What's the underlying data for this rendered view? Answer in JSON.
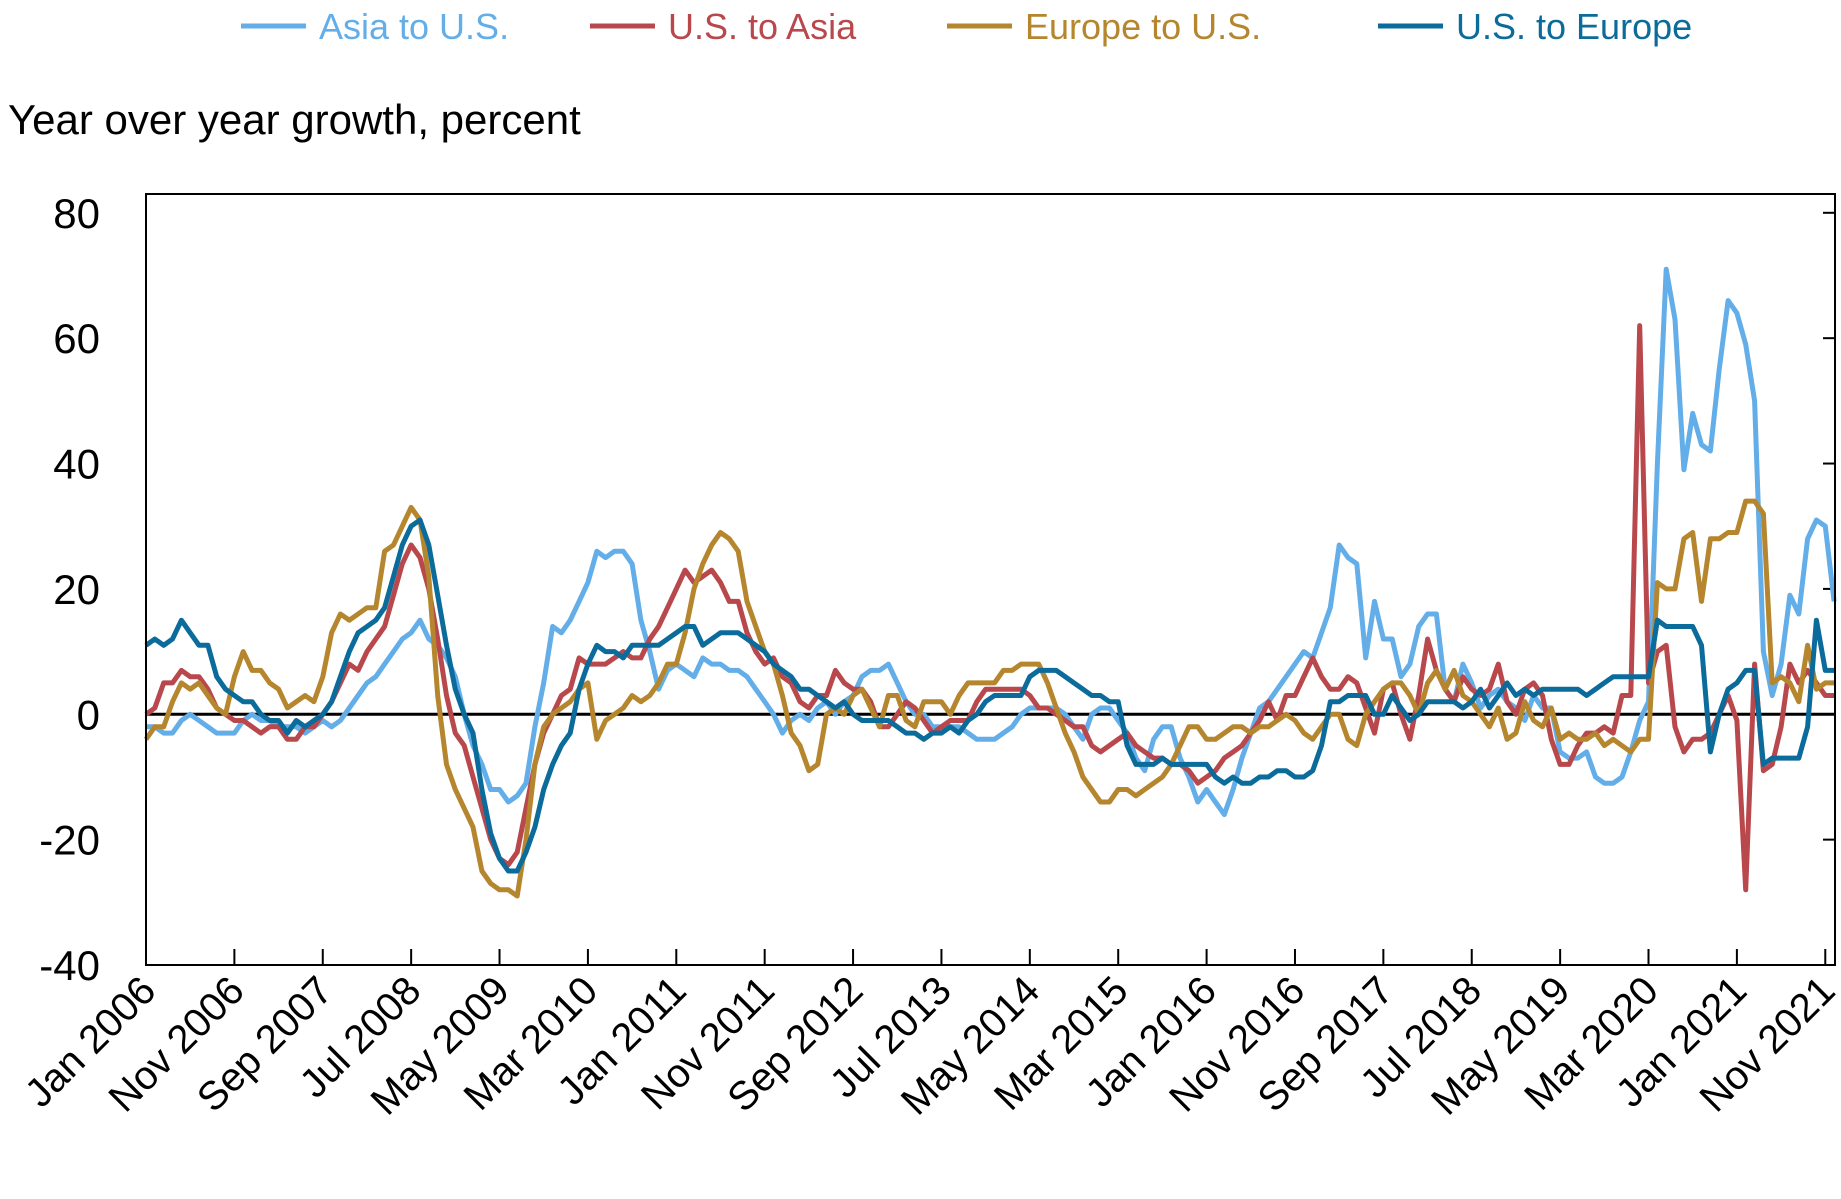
{
  "chart_data": {
    "type": "line",
    "title": "",
    "ylabel": "Year over year growth, percent",
    "xlabel": "",
    "ylim": [
      -40,
      83
    ],
    "xlim": [
      "2006-01",
      "2021-12"
    ],
    "yticks": [
      80,
      60,
      40,
      20,
      0,
      -20,
      -40
    ],
    "xtick_labels": [
      "Jan 2006",
      "Nov 2006",
      "Sep 2007",
      "Jul 2008",
      "May 2009",
      "Mar 2010",
      "Jan 2011",
      "Nov 2011",
      "Sep 2012",
      "Jul 2013",
      "May 2014",
      "Mar 2015",
      "Jan 2016",
      "Nov 2016",
      "Sep 2017",
      "Jul 2018",
      "May 2019",
      "Mar 2020",
      "Jan 2021",
      "Nov 2021"
    ],
    "grid": false,
    "zero_line": true,
    "legend_position": "top",
    "frequency": "monthly",
    "series": [
      {
        "name": "Asia to U.S.",
        "color": "#63aee8",
        "values": {
          "2006": [
            -2,
            -2,
            -3,
            -3,
            -1,
            0,
            -1,
            -2,
            -3,
            -3,
            -3,
            -1
          ],
          "2007": [
            0,
            -1,
            -1,
            -2,
            -2,
            -2,
            -3,
            -2,
            -1,
            -2,
            -1,
            1
          ],
          "2008": [
            3,
            5,
            6,
            8,
            10,
            12,
            13,
            15,
            12,
            11,
            9,
            6
          ],
          "2009": [
            0,
            -5,
            -8,
            -12,
            -12,
            -14,
            -13,
            -11,
            -2,
            5,
            14,
            13
          ],
          "2010": [
            15,
            18,
            21,
            26,
            25,
            26,
            26,
            24,
            15,
            10,
            4,
            7
          ],
          "2011": [
            8,
            7,
            6,
            9,
            8,
            8,
            7,
            7,
            6,
            4,
            2,
            0
          ],
          "2012": [
            -3,
            -1,
            0,
            -1,
            1,
            2,
            0,
            2,
            3,
            6,
            7,
            7
          ],
          "2013": [
            8,
            5,
            2,
            0,
            0,
            -2,
            -2,
            -2,
            -2,
            -3,
            -4,
            -4
          ],
          "2014": [
            -4,
            -3,
            -2,
            0,
            1,
            1,
            1,
            1,
            0,
            -2,
            -4,
            0
          ],
          "2015": [
            1,
            1,
            -1,
            -3,
            -7,
            -9,
            -4,
            -2,
            -2,
            -7,
            -10,
            -14
          ],
          "2016": [
            -12,
            -14,
            -16,
            -12,
            -7,
            -3,
            1,
            2,
            4,
            6,
            8,
            10
          ],
          "2017": [
            9,
            13,
            17,
            27,
            25,
            24,
            9,
            18,
            12,
            12,
            6,
            8
          ],
          "2018": [
            14,
            16,
            16,
            4,
            2,
            8,
            5,
            1,
            3,
            4,
            2,
            1
          ],
          "2019": [
            -1,
            3,
            1,
            1,
            -6,
            -7,
            -7,
            -6,
            -10,
            -11,
            -11,
            -10
          ],
          "2020": [
            -6,
            -1,
            2,
            40,
            71,
            63,
            39,
            48,
            43,
            42,
            55,
            66
          ],
          "2021": [
            64,
            59,
            50,
            10,
            3,
            8,
            19,
            16,
            28,
            31,
            30,
            18
          ]
        }
      },
      {
        "name": "U.S. to Asia",
        "color": "#b8484c",
        "values": {
          "2006": [
            0,
            1,
            5,
            5,
            7,
            6,
            6,
            4,
            1,
            0,
            -1,
            -1
          ],
          "2007": [
            -2,
            -3,
            -2,
            -2,
            -4,
            -4,
            -2,
            -2,
            0,
            2,
            5,
            8
          ],
          "2008": [
            7,
            10,
            12,
            14,
            19,
            24,
            27,
            25,
            20,
            12,
            3,
            -3
          ],
          "2009": [
            -5,
            -10,
            -15,
            -20,
            -23,
            -24,
            -22,
            -15,
            -8,
            -3,
            0,
            3
          ],
          "2010": [
            4,
            9,
            8,
            8,
            8,
            9,
            10,
            9,
            9,
            12,
            14,
            17
          ],
          "2011": [
            20,
            23,
            21,
            22,
            23,
            21,
            18,
            18,
            13,
            10,
            8,
            9
          ],
          "2012": [
            6,
            5,
            2,
            1,
            3,
            3,
            7,
            5,
            4,
            4,
            2,
            -2
          ],
          "2013": [
            -2,
            0,
            2,
            1,
            -1,
            -3,
            -2,
            -1,
            -1,
            -1,
            2,
            4
          ],
          "2014": [
            4,
            4,
            4,
            4,
            3,
            1,
            1,
            0,
            -1,
            -2,
            -2,
            -5
          ],
          "2015": [
            -6,
            -5,
            -4,
            -3,
            -5,
            -6,
            -7,
            -7,
            -8,
            -8,
            -9,
            -11
          ],
          "2016": [
            -10,
            -9,
            -7,
            -6,
            -5,
            -3,
            -1,
            2,
            -1,
            3,
            3,
            6
          ],
          "2017": [
            9,
            6,
            4,
            4,
            6,
            5,
            1,
            -3,
            4,
            5,
            0,
            -4
          ],
          "2018": [
            3,
            12,
            7,
            4,
            2,
            6,
            4,
            3,
            4,
            8,
            2,
            0
          ],
          "2019": [
            4,
            5,
            3,
            -4,
            -8,
            -8,
            -5,
            -3,
            -3,
            -2,
            -3,
            3
          ],
          "2020": [
            3,
            62,
            5,
            10,
            11,
            -2,
            -6,
            -4,
            -4,
            -3,
            0,
            3
          ],
          "2021": [
            -1,
            -28,
            8,
            -9,
            -8,
            -2,
            8,
            5,
            7,
            5,
            3,
            3
          ]
        }
      },
      {
        "name": "Europe to U.S.",
        "color": "#b5862e",
        "values": {
          "2006": [
            -4,
            -2,
            -2,
            2,
            5,
            4,
            5,
            3,
            1,
            0,
            6,
            10
          ],
          "2007": [
            7,
            7,
            5,
            4,
            1,
            2,
            3,
            2,
            6,
            13,
            16,
            15
          ],
          "2008": [
            16,
            17,
            17,
            26,
            27,
            30,
            33,
            31,
            22,
            3,
            -8,
            -12
          ],
          "2009": [
            -15,
            -18,
            -25,
            -27,
            -28,
            -28,
            -29,
            -20,
            -8,
            -2,
            0,
            1
          ],
          "2010": [
            2,
            4,
            5,
            -4,
            -1,
            0,
            1,
            3,
            2,
            3,
            5,
            8
          ],
          "2011": [
            8,
            13,
            20,
            24,
            27,
            29,
            28,
            26,
            18,
            14,
            10,
            8
          ],
          "2012": [
            3,
            -3,
            -5,
            -9,
            -8,
            0,
            1,
            0,
            3,
            4,
            1,
            -2
          ],
          "2013": [
            3,
            3,
            -1,
            -2,
            2,
            2,
            2,
            0,
            3,
            5,
            5,
            5
          ],
          "2014": [
            5,
            7,
            7,
            8,
            8,
            8,
            5,
            1,
            -3,
            -6,
            -10,
            -12
          ],
          "2015": [
            -14,
            -14,
            -12,
            -12,
            -13,
            -12,
            -11,
            -10,
            -8,
            -5,
            -2,
            -2
          ],
          "2016": [
            -4,
            -4,
            -3,
            -2,
            -2,
            -3,
            -2,
            -2,
            -1,
            0,
            -1,
            -3
          ],
          "2017": [
            -4,
            -2,
            0,
            0,
            -4,
            -5,
            0,
            2,
            4,
            5,
            5,
            3
          ],
          "2018": [
            0,
            5,
            7,
            4,
            7,
            3,
            2,
            0,
            -2,
            1,
            -4,
            -3
          ],
          "2019": [
            2,
            -1,
            -2,
            1,
            -4,
            -3,
            -4,
            -4,
            -3,
            -5,
            -4,
            -5
          ],
          "2020": [
            -6,
            -4,
            -4,
            21,
            20,
            20,
            28,
            29,
            18,
            28,
            28,
            29
          ],
          "2021": [
            29,
            34,
            34,
            32,
            5,
            6,
            5,
            2,
            11,
            4,
            5,
            5
          ]
        }
      },
      {
        "name": "U.S. to Europe",
        "color": "#0b6b9b",
        "values": {
          "2006": [
            11,
            12,
            11,
            12,
            15,
            13,
            11,
            11,
            6,
            4,
            3,
            2
          ],
          "2007": [
            2,
            0,
            -1,
            -1,
            -3,
            -1,
            -2,
            -1,
            0,
            2,
            6,
            10
          ],
          "2008": [
            13,
            14,
            15,
            17,
            22,
            27,
            30,
            31,
            27,
            19,
            11,
            4
          ],
          "2009": [
            0,
            -3,
            -12,
            -19,
            -23,
            -25,
            -25,
            -22,
            -18,
            -12,
            -8,
            -5
          ],
          "2010": [
            -3,
            4,
            8,
            11,
            10,
            10,
            9,
            11,
            11,
            11,
            11,
            12
          ],
          "2011": [
            13,
            14,
            14,
            11,
            12,
            13,
            13,
            13,
            12,
            11,
            10,
            8
          ],
          "2012": [
            7,
            6,
            4,
            4,
            3,
            2,
            1,
            2,
            0,
            -1,
            -1,
            -1
          ],
          "2013": [
            -1,
            -2,
            -3,
            -3,
            -4,
            -3,
            -3,
            -2,
            -3,
            -1,
            0,
            2
          ],
          "2014": [
            3,
            3,
            3,
            3,
            6,
            7,
            7,
            7,
            6,
            5,
            4,
            3
          ],
          "2015": [
            3,
            2,
            2,
            -5,
            -8,
            -8,
            -8,
            -7,
            -8,
            -8,
            -8,
            -8
          ],
          "2016": [
            -8,
            -10,
            -11,
            -10,
            -11,
            -11,
            -10,
            -10,
            -9,
            -9,
            -10,
            -10
          ],
          "2017": [
            -9,
            -5,
            2,
            2,
            3,
            3,
            3,
            0,
            0,
            3,
            1,
            -1
          ],
          "2018": [
            0,
            2,
            2,
            2,
            2,
            1,
            2,
            4,
            1,
            3,
            5,
            3
          ],
          "2019": [
            4,
            3,
            4,
            4,
            4,
            4,
            4,
            3,
            4,
            5,
            6,
            6
          ],
          "2020": [
            6,
            6,
            6,
            15,
            14,
            14,
            14,
            14,
            11,
            -6,
            0,
            4
          ],
          "2021": [
            5,
            7,
            7,
            -8,
            -7,
            -7,
            -7,
            -7,
            -2,
            15,
            7,
            7
          ]
        }
      }
    ]
  }
}
